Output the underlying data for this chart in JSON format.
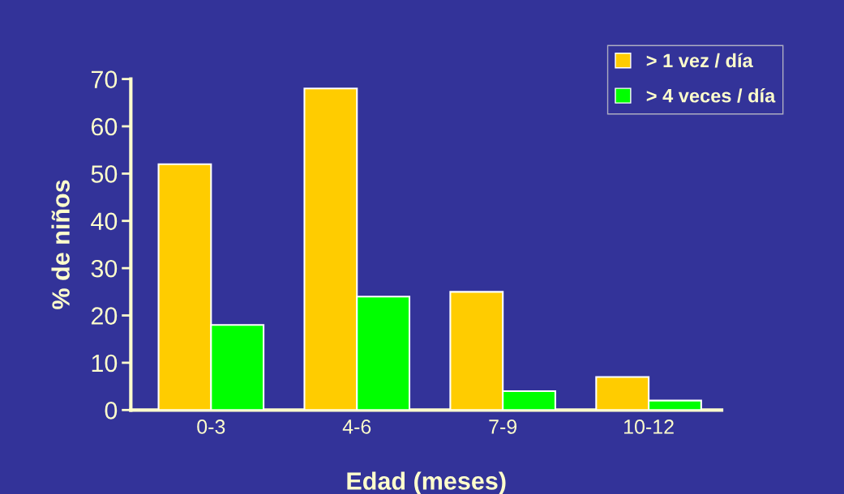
{
  "chart_data": {
    "type": "bar",
    "xlabel": "Edad (meses)",
    "ylabel": "% de niños",
    "categories": [
      "0-3",
      "4-6",
      "7-9",
      "10-12"
    ],
    "series": [
      {
        "name": "> 1 vez / día",
        "color": "#ffcc00",
        "values": [
          52,
          68,
          25,
          7
        ]
      },
      {
        "name": "> 4 veces / día",
        "color": "#00ff00",
        "values": [
          18,
          24,
          4,
          2
        ]
      }
    ],
    "ylim": [
      0,
      70
    ],
    "yticks": [
      0,
      10,
      20,
      30,
      40,
      50,
      60,
      70
    ],
    "grid": false,
    "legend": "top right"
  }
}
